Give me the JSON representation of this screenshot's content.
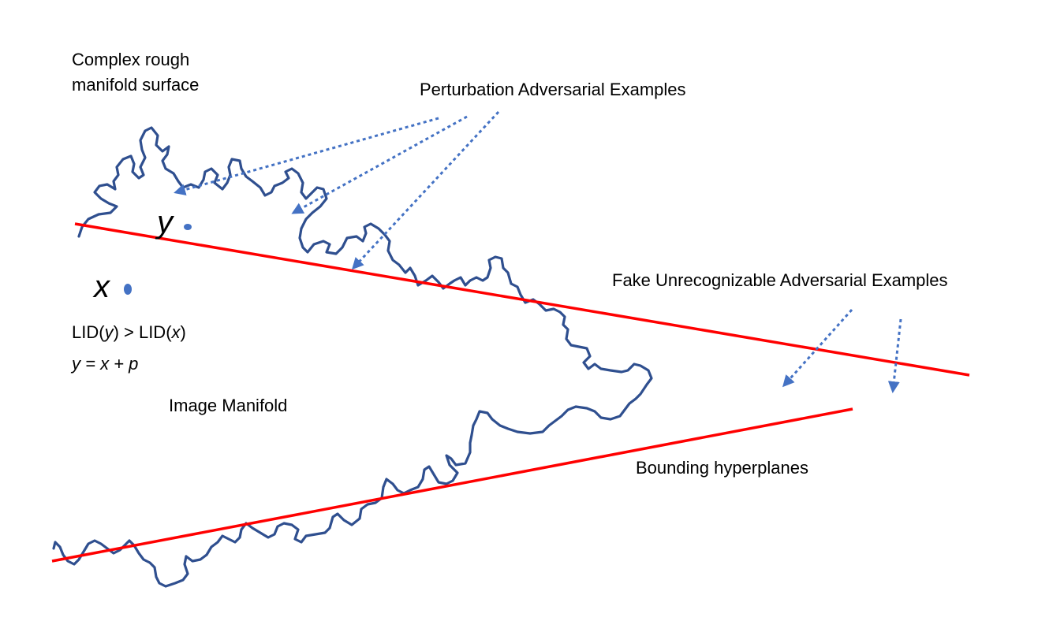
{
  "labels": {
    "complex_surface": [
      "Complex rough",
      "manifold surface"
    ],
    "perturbation": "Perturbation Adversarial Examples",
    "fake": "Fake Unrecognizable Adversarial Examples",
    "image_manifold": "Image Manifold",
    "bounding": "Bounding hyperplanes",
    "point_y": "y",
    "point_x": "x",
    "lid": {
      "a": "LID(",
      "y": "y",
      "b": ") > LID(",
      "x": "x",
      "c": ")"
    },
    "equation": "y = x + p"
  },
  "colors": {
    "manifold": "#2F4F8F",
    "hyperplane": "#FF0000",
    "arrow": "#4472C4",
    "point": "#4472C4"
  }
}
